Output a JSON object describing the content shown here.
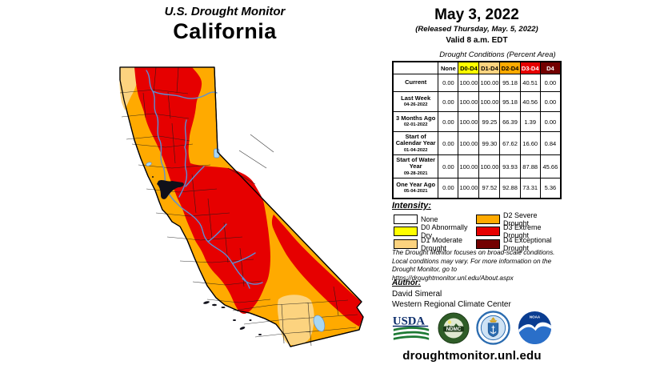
{
  "title": {
    "line1": "U.S. Drought Monitor",
    "line2": "California"
  },
  "date_block": {
    "date": "May 3, 2022",
    "released": "(Released Thursday, May. 5, 2022)",
    "valid": "Valid 8 a.m. EDT"
  },
  "palette": {
    "none": "#FFFFFF",
    "d0": "#FFFF00",
    "d1": "#FCD37F",
    "d2": "#FFAA00",
    "d3": "#E60000",
    "d4": "#730000"
  },
  "table": {
    "caption": "Drought Conditions (Percent Area)",
    "columns": [
      {
        "label": "None",
        "color_key": "none",
        "text_color": "#000000"
      },
      {
        "label": "D0-D4",
        "color_key": "d0",
        "text_color": "#000000"
      },
      {
        "label": "D1-D4",
        "color_key": "d1",
        "text_color": "#000000"
      },
      {
        "label": "D2-D4",
        "color_key": "d2",
        "text_color": "#000000"
      },
      {
        "label": "D3-D4",
        "color_key": "d3",
        "text_color": "#FFFFFF"
      },
      {
        "label": "D4",
        "color_key": "d4",
        "text_color": "#FFFFFF"
      }
    ],
    "rows": [
      {
        "label": "Current",
        "date": "",
        "values": [
          "0.00",
          "100.00",
          "100.00",
          "95.18",
          "40.51",
          "0.00"
        ]
      },
      {
        "label": "Last Week",
        "date": "04-26-2022",
        "values": [
          "0.00",
          "100.00",
          "100.00",
          "95.18",
          "40.56",
          "0.00"
        ]
      },
      {
        "label": "3 Months Ago",
        "date": "02-01-2022",
        "values": [
          "0.00",
          "100.00",
          "99.25",
          "66.39",
          "1.39",
          "0.00"
        ]
      },
      {
        "label": "Start of Calendar Year",
        "date": "01-04-2022",
        "values": [
          "0.00",
          "100.00",
          "99.30",
          "67.62",
          "16.60",
          "0.84"
        ]
      },
      {
        "label": "Start of Water Year",
        "date": "09-28-2021",
        "values": [
          "0.00",
          "100.00",
          "100.00",
          "93.93",
          "87.88",
          "45.66"
        ]
      },
      {
        "label": "One Year Ago",
        "date": "05-04-2021",
        "values": [
          "0.00",
          "100.00",
          "97.52",
          "92.88",
          "73.31",
          "5.36"
        ]
      }
    ]
  },
  "legend": {
    "heading": "Intensity:",
    "items": [
      {
        "label": "None",
        "color_key": "none"
      },
      {
        "label": "D0 Abnormally Dry",
        "color_key": "d0"
      },
      {
        "label": "D1 Moderate Drought",
        "color_key": "d1"
      },
      {
        "label": "D2 Severe Drought",
        "color_key": "d2"
      },
      {
        "label": "D3 Extreme Drought",
        "color_key": "d3"
      },
      {
        "label": "D4 Exceptional Drought",
        "color_key": "d4"
      }
    ]
  },
  "disclaimer": {
    "line1": "The Drought Monitor focuses on broad-scale conditions.",
    "line2": "Local conditions may vary. For more information on the",
    "line3": "Drought Monitor, go to https://droughtmonitor.unl.edu/About.aspx"
  },
  "author": {
    "heading": "Author:",
    "name": "David Simeral",
    "org": "Western Regional Climate Center"
  },
  "logos": {
    "usda": "USDA",
    "ndmc": "NDMC",
    "noaa": "NOAA"
  },
  "footer": {
    "url": "droughtmonitor.unl.edu"
  },
  "map": {
    "state": "California",
    "outline_color": "#000000",
    "county_line_color": "#1b1b1b",
    "river_color": "#5B8FD6",
    "lake_color": "#A9D7F2",
    "bay_color": "#10101a"
  }
}
